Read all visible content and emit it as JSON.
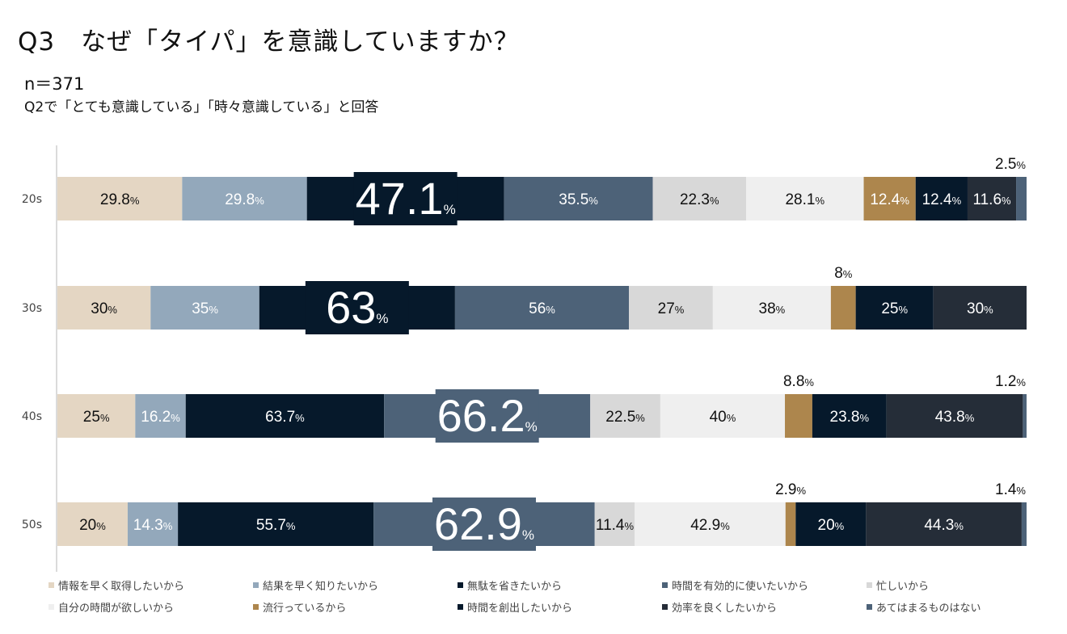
{
  "title": "Q3　なぜ「タイパ」を意識していますか？",
  "sample": "n＝371",
  "subtitle": "Q2で「とても意識している」「時々意識している」と回答",
  "chart_data": {
    "type": "bar",
    "orientation": "horizontal",
    "stacked": true,
    "unit": "%",
    "categories": [
      "20s",
      "30s",
      "40s",
      "50s"
    ],
    "highlight": [
      2,
      2,
      3,
      3
    ],
    "series": [
      {
        "name": "情報を早く取得したいから",
        "color": "#e4d6c3",
        "values": [
          "29.8",
          "30",
          "25",
          "20"
        ]
      },
      {
        "name": "結果を早く知りたいから",
        "color": "#93a8bb",
        "values": [
          "29.8",
          "35",
          "16.2",
          "14.3"
        ]
      },
      {
        "name": "無駄を省きたいから",
        "color": "#06192b",
        "values": [
          "47.1",
          "63",
          "63.7",
          "55.7"
        ]
      },
      {
        "name": "時間を有効的に使いたいから",
        "color": "#4d6278",
        "values": [
          "35.5",
          "56",
          "66.2",
          "62.9"
        ]
      },
      {
        "name": "忙しいから",
        "color": "#d8d8d8",
        "values": [
          "22.3",
          "27",
          "22.5",
          "11.4"
        ]
      },
      {
        "name": "自分の時間が欲しいから",
        "color": "#efefef",
        "values": [
          "28.1",
          "38",
          "40",
          "42.9"
        ]
      },
      {
        "name": "流行っているから",
        "color": "#ad864d",
        "values": [
          "12.4",
          "8",
          "8.8",
          "2.9"
        ]
      },
      {
        "name": "時間を創出したいから",
        "color": "#06192b",
        "values": [
          "12.4",
          "25",
          "23.8",
          "20"
        ]
      },
      {
        "name": "効率を良くしたいから",
        "color": "#252d38",
        "values": [
          "11.6",
          "30",
          "43.8",
          "44.3"
        ]
      },
      {
        "name": "あてはまるものはない",
        "color": "#4d6278",
        "values": [
          "2.5",
          "0",
          "1.2",
          "1.4"
        ]
      }
    ]
  }
}
